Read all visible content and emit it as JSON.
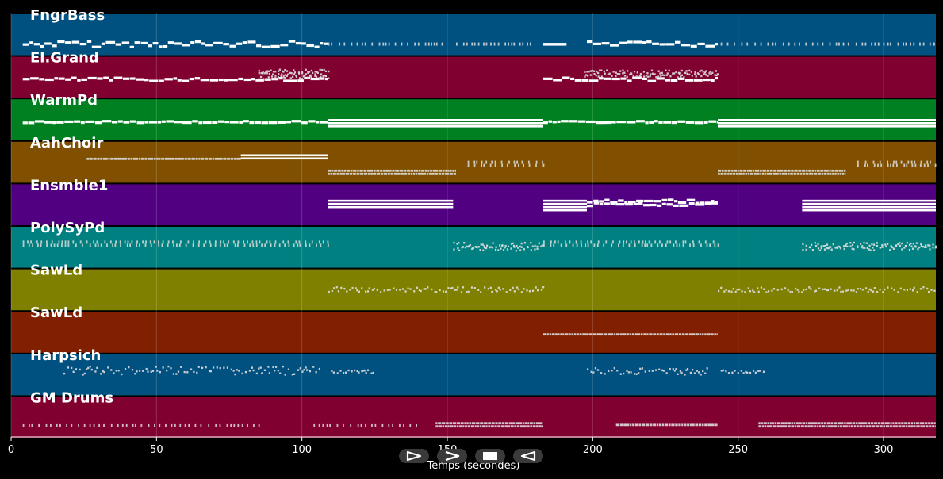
{
  "timeline": {
    "x_min": 0,
    "x_max": 318,
    "ticks": [
      0,
      50,
      100,
      150,
      200,
      250,
      300
    ],
    "tick_labels": [
      "0",
      "50",
      "100",
      "150",
      "200",
      "250",
      "300"
    ],
    "xlabel": "Temps (secondes)"
  },
  "tracks": [
    {
      "name": "FngrBass",
      "color": "#005080",
      "segments": [
        {
          "start": 4,
          "end": 109,
          "style": "steps",
          "rows": 1,
          "level": 0.72,
          "amp": 0.07
        },
        {
          "start": 109,
          "end": 150,
          "style": "ticks",
          "rows": 1,
          "level": 0.72,
          "amp": 0.0
        },
        {
          "start": 153,
          "end": 180,
          "style": "ticks",
          "rows": 1,
          "level": 0.72,
          "amp": 0.0
        },
        {
          "start": 183,
          "end": 191,
          "style": "bar",
          "rows": 1,
          "level": 0.72,
          "amp": 0.0
        },
        {
          "start": 198,
          "end": 243,
          "style": "steps",
          "rows": 1,
          "level": 0.72,
          "amp": 0.06
        },
        {
          "start": 244,
          "end": 318,
          "style": "ticks",
          "rows": 1,
          "level": 0.72,
          "amp": 0.0
        }
      ]
    },
    {
      "name": "El.Grand",
      "color": "#800030",
      "segments": [
        {
          "start": 4,
          "end": 109,
          "style": "steps",
          "rows": 1,
          "level": 0.55,
          "amp": 0.04
        },
        {
          "start": 85,
          "end": 109,
          "style": "dots",
          "rows": 3,
          "level": 0.36,
          "amp": 0.04
        },
        {
          "start": 183,
          "end": 243,
          "style": "steps",
          "rows": 1,
          "level": 0.55,
          "amp": 0.04
        },
        {
          "start": 197,
          "end": 243,
          "style": "dots",
          "rows": 2,
          "level": 0.38,
          "amp": 0.05
        }
      ]
    },
    {
      "name": "WarmPd",
      "color": "#008020",
      "segments": [
        {
          "start": 4,
          "end": 109,
          "style": "steps",
          "rows": 1,
          "level": 0.55,
          "amp": 0.02
        },
        {
          "start": 109,
          "end": 183,
          "style": "lines",
          "rows": 3,
          "level": 0.5,
          "amp": 0.0
        },
        {
          "start": 183,
          "end": 243,
          "style": "steps",
          "rows": 1,
          "level": 0.55,
          "amp": 0.02
        },
        {
          "start": 243,
          "end": 318,
          "style": "lines",
          "rows": 3,
          "level": 0.5,
          "amp": 0.0
        }
      ]
    },
    {
      "name": "AahChoir",
      "color": "#805000",
      "segments": [
        {
          "start": 26,
          "end": 79,
          "style": "dense",
          "rows": 1,
          "level": 0.42,
          "amp": 0.0
        },
        {
          "start": 79,
          "end": 109,
          "style": "lines",
          "rows": 2,
          "level": 0.33,
          "amp": 0.0
        },
        {
          "start": 109,
          "end": 153,
          "style": "dense",
          "rows": 2,
          "level": 0.7,
          "amp": 0.0
        },
        {
          "start": 157,
          "end": 183,
          "style": "ticks",
          "rows": 2,
          "level": 0.5,
          "amp": 0.0
        },
        {
          "start": 243,
          "end": 287,
          "style": "dense",
          "rows": 2,
          "level": 0.7,
          "amp": 0.0
        },
        {
          "start": 291,
          "end": 318,
          "style": "ticks",
          "rows": 2,
          "level": 0.5,
          "amp": 0.0
        }
      ]
    },
    {
      "name": "Ensmble1",
      "color": "#500080",
      "segments": [
        {
          "start": 109,
          "end": 152,
          "style": "lines",
          "rows": 3,
          "level": 0.4,
          "amp": 0.0
        },
        {
          "start": 183,
          "end": 198,
          "style": "lines",
          "rows": 4,
          "level": 0.4,
          "amp": 0.0
        },
        {
          "start": 198,
          "end": 243,
          "style": "steps",
          "rows": 2,
          "level": 0.42,
          "amp": 0.04
        },
        {
          "start": 272,
          "end": 318,
          "style": "lines",
          "rows": 4,
          "level": 0.4,
          "amp": 0.0
        }
      ]
    },
    {
      "name": "PolySyPd",
      "color": "#008080",
      "segments": [
        {
          "start": 4,
          "end": 109,
          "style": "ticks",
          "rows": 2,
          "level": 0.38,
          "amp": 0.0
        },
        {
          "start": 152,
          "end": 183,
          "style": "dotsoft",
          "rows": 2,
          "level": 0.45,
          "amp": 0.06
        },
        {
          "start": 183,
          "end": 243,
          "style": "ticks",
          "rows": 2,
          "level": 0.38,
          "amp": 0.0
        },
        {
          "start": 272,
          "end": 318,
          "style": "dotsoft",
          "rows": 2,
          "level": 0.45,
          "amp": 0.06
        }
      ]
    },
    {
      "name": "SawLd",
      "color": "#808000",
      "segments": [
        {
          "start": 109,
          "end": 183,
          "style": "dotsoft",
          "rows": 1,
          "level": 0.5,
          "amp": 0.06
        },
        {
          "start": 243,
          "end": 318,
          "style": "dotsoft",
          "rows": 1,
          "level": 0.5,
          "amp": 0.06
        }
      ]
    },
    {
      "name": "SawLd",
      "color": "#802000",
      "segments": [
        {
          "start": 183,
          "end": 243,
          "style": "dense",
          "rows": 1,
          "level": 0.55,
          "amp": 0.0
        }
      ]
    },
    {
      "name": "Harpsich",
      "color": "#005080",
      "segments": [
        {
          "start": 18,
          "end": 106,
          "style": "dotsoft",
          "rows": 1,
          "level": 0.4,
          "amp": 0.1
        },
        {
          "start": 110,
          "end": 125,
          "style": "dotsoft",
          "rows": 1,
          "level": 0.43,
          "amp": 0.04
        },
        {
          "start": 198,
          "end": 240,
          "style": "dotsoft",
          "rows": 1,
          "level": 0.42,
          "amp": 0.08
        },
        {
          "start": 244,
          "end": 259,
          "style": "dotsoft",
          "rows": 1,
          "level": 0.43,
          "amp": 0.04
        }
      ]
    },
    {
      "name": "GM Drums",
      "color": "#800030",
      "segments": [
        {
          "start": 4,
          "end": 86,
          "style": "ticks",
          "rows": 1,
          "level": 0.7,
          "amp": 0.0
        },
        {
          "start": 104,
          "end": 140,
          "style": "ticks",
          "rows": 1,
          "level": 0.7,
          "amp": 0.0
        },
        {
          "start": 146,
          "end": 183,
          "style": "dense",
          "rows": 2,
          "level": 0.64,
          "amp": 0.0
        },
        {
          "start": 208,
          "end": 243,
          "style": "dense",
          "rows": 1,
          "level": 0.68,
          "amp": 0.0
        },
        {
          "start": 257,
          "end": 318,
          "style": "dense",
          "rows": 2,
          "level": 0.64,
          "amp": 0.0
        }
      ]
    }
  ],
  "controls": [
    {
      "name": "play-button",
      "icon": "play-outline-icon"
    },
    {
      "name": "forward-button",
      "icon": "chevron-right-icon"
    },
    {
      "name": "stop-button",
      "icon": "stop-icon"
    },
    {
      "name": "back-button",
      "icon": "play-reverse-outline-icon"
    }
  ]
}
